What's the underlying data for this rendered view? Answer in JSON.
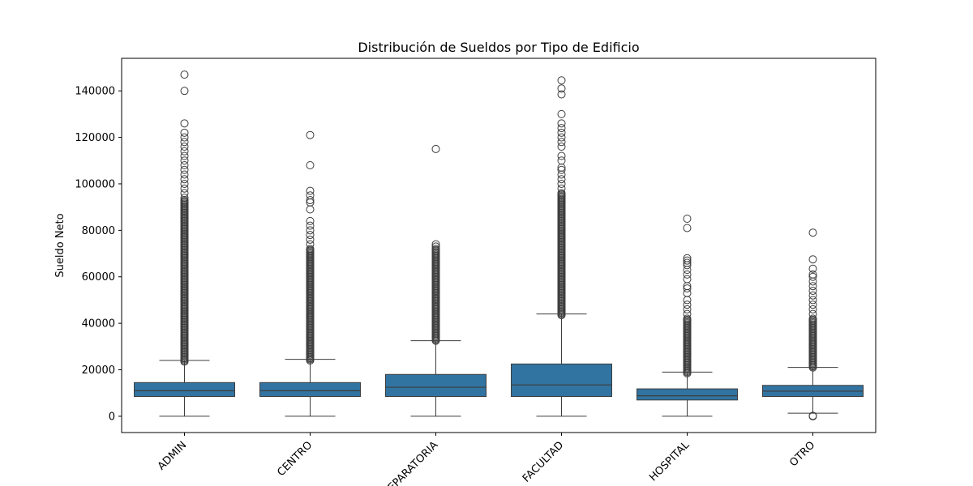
{
  "chart_data": {
    "type": "box",
    "title": "Distribución de Sueldos por Tipo de Edificio",
    "xlabel": "",
    "ylabel": "Sueldo Neto",
    "ylim": [
      -7000,
      154000
    ],
    "yticks": [
      0,
      20000,
      40000,
      60000,
      80000,
      100000,
      120000,
      140000
    ],
    "ytick_labels": [
      "0",
      "20000",
      "40000",
      "60000",
      "80000",
      "100000",
      "120000",
      "140000"
    ],
    "categories": [
      "ADMIN",
      "CENTRO",
      "PREPARATORIA",
      "FACULTAD",
      "HOSPITAL",
      "OTRO"
    ],
    "color": "#3274a1",
    "grid": false,
    "boxes": [
      {
        "category": "ADMIN",
        "whisker_low": 0,
        "q1": 8500,
        "median": 11000,
        "q3": 14500,
        "whisker_high": 24000,
        "outlier_band": [
          23500,
          93000
        ],
        "outliers": [
          94000,
          96000,
          98000,
          100000,
          102000,
          104000,
          106000,
          108000,
          110000,
          112000,
          114000,
          116000,
          118000,
          120000,
          122000,
          126000,
          140000,
          147000
        ]
      },
      {
        "category": "CENTRO",
        "whisker_low": 0,
        "q1": 8500,
        "median": 11000,
        "q3": 14500,
        "whisker_high": 24500,
        "outlier_band": [
          24000,
          72000
        ],
        "outliers": [
          74000,
          76000,
          78000,
          80000,
          82000,
          84000,
          89000,
          92000,
          93000,
          95000,
          97000,
          108000,
          121000
        ]
      },
      {
        "category": "PREPARATORIA",
        "whisker_low": 0,
        "q1": 8500,
        "median": 12500,
        "q3": 18000,
        "whisker_high": 32500,
        "outlier_band": [
          32500,
          72000
        ],
        "outliers": [
          73000,
          74000,
          115000
        ]
      },
      {
        "category": "FACULTAD",
        "whisker_low": 0,
        "q1": 8500,
        "median": 13500,
        "q3": 22500,
        "whisker_high": 44000,
        "outlier_band": [
          43500,
          96000
        ],
        "outliers": [
          98000,
          100000,
          102000,
          104000,
          106000,
          107000,
          110000,
          112000,
          116000,
          118000,
          120000,
          122000,
          124000,
          126000,
          130000,
          138500,
          141000,
          144500
        ]
      },
      {
        "category": "HOSPITAL",
        "whisker_low": 0,
        "q1": 7000,
        "median": 8800,
        "q3": 11800,
        "whisker_high": 19000,
        "outlier_band": [
          18500,
          42000
        ],
        "outliers": [
          44000,
          46000,
          48000,
          50000,
          53000,
          55000,
          56000,
          59000,
          61000,
          63000,
          65000,
          66000,
          67000,
          68000,
          81000,
          85000
        ]
      },
      {
        "category": "OTRO",
        "whisker_low": 1300,
        "q1": 8500,
        "median": 10800,
        "q3": 13300,
        "whisker_high": 21000,
        "outlier_band": [
          21000,
          42000
        ],
        "outliers": [
          0,
          200,
          44000,
          46000,
          48000,
          50000,
          52000,
          54000,
          56000,
          58000,
          60000,
          61000,
          63500,
          67500,
          79000
        ]
      }
    ]
  }
}
